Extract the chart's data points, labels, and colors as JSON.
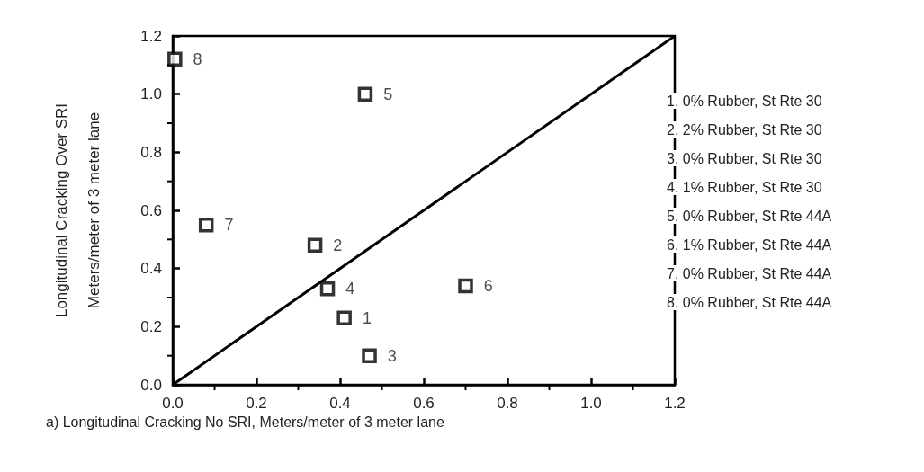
{
  "chart_data": {
    "type": "scatter",
    "xlabel": "a) Longitudinal Cracking No SRI, Meters/meter of 3 meter lane",
    "ylabel": "Longitudinal Cracking Over SRI\nMeters/meter of 3 meter lane",
    "xlim": [
      0,
      1.2
    ],
    "ylim": [
      0,
      1.2
    ],
    "xticks": [
      {
        "value": 0,
        "label": "0.0"
      },
      {
        "value": 0.2,
        "label": "0.2"
      },
      {
        "value": 0.4,
        "label": "0.4"
      },
      {
        "value": 0.6,
        "label": "0.6"
      },
      {
        "value": 0.8,
        "label": "0.8"
      },
      {
        "value": 1,
        "label": "1.0"
      },
      {
        "value": 1.2,
        "label": "1.2"
      }
    ],
    "yticks": [
      {
        "value": 0,
        "label": "0.0"
      },
      {
        "value": 0.2,
        "label": "0.2"
      },
      {
        "value": 0.4,
        "label": "0.4"
      },
      {
        "value": 0.6,
        "label": "0.6"
      },
      {
        "value": 0.8,
        "label": "0.8"
      },
      {
        "value": 1,
        "label": "1.0"
      },
      {
        "value": 1.2,
        "label": "1.2"
      }
    ],
    "grid": false,
    "legend": false,
    "marker": "square",
    "series": [
      {
        "name": "1",
        "color": "#000000",
        "x": [
          0.41
        ],
        "values": [
          0.23
        ]
      },
      {
        "name": "2",
        "color": "#000000",
        "x": [
          0.34
        ],
        "values": [
          0.48
        ]
      },
      {
        "name": "3",
        "color": "#000000",
        "x": [
          0.47
        ],
        "values": [
          0.1
        ]
      },
      {
        "name": "4",
        "color": "#000000",
        "x": [
          0.37
        ],
        "values": [
          0.33
        ]
      },
      {
        "name": "5",
        "color": "#000000",
        "x": [
          0.46
        ],
        "values": [
          1.0
        ]
      },
      {
        "name": "6",
        "color": "#000000",
        "x": [
          0.7
        ],
        "values": [
          0.34
        ]
      },
      {
        "name": "7",
        "color": "#000000",
        "x": [
          0.08
        ],
        "values": [
          0.55
        ]
      },
      {
        "name": "8",
        "color": "#000000",
        "x": [
          0.005
        ],
        "values": [
          1.12
        ]
      },
      {
        "type": "line",
        "color": "#000000",
        "marker": "none",
        "line_style": "solid",
        "x": [
          0,
          1.2
        ],
        "values": [
          0,
          1.2
        ]
      }
    ],
    "annotations": [
      "1. 0% Rubber, St Rte 30",
      "2. 2% Rubber, St Rte 30",
      "3. 0% Rubber, St Rte 30",
      "4. 1% Rubber, St Rte 30",
      "5. 0% Rubber, St Rte 44A",
      "6. 1% Rubber, St Rte 44A",
      "7. 0% Rubber, St Rte 44A",
      "8. 0% Rubber, St Rte 44A"
    ]
  }
}
